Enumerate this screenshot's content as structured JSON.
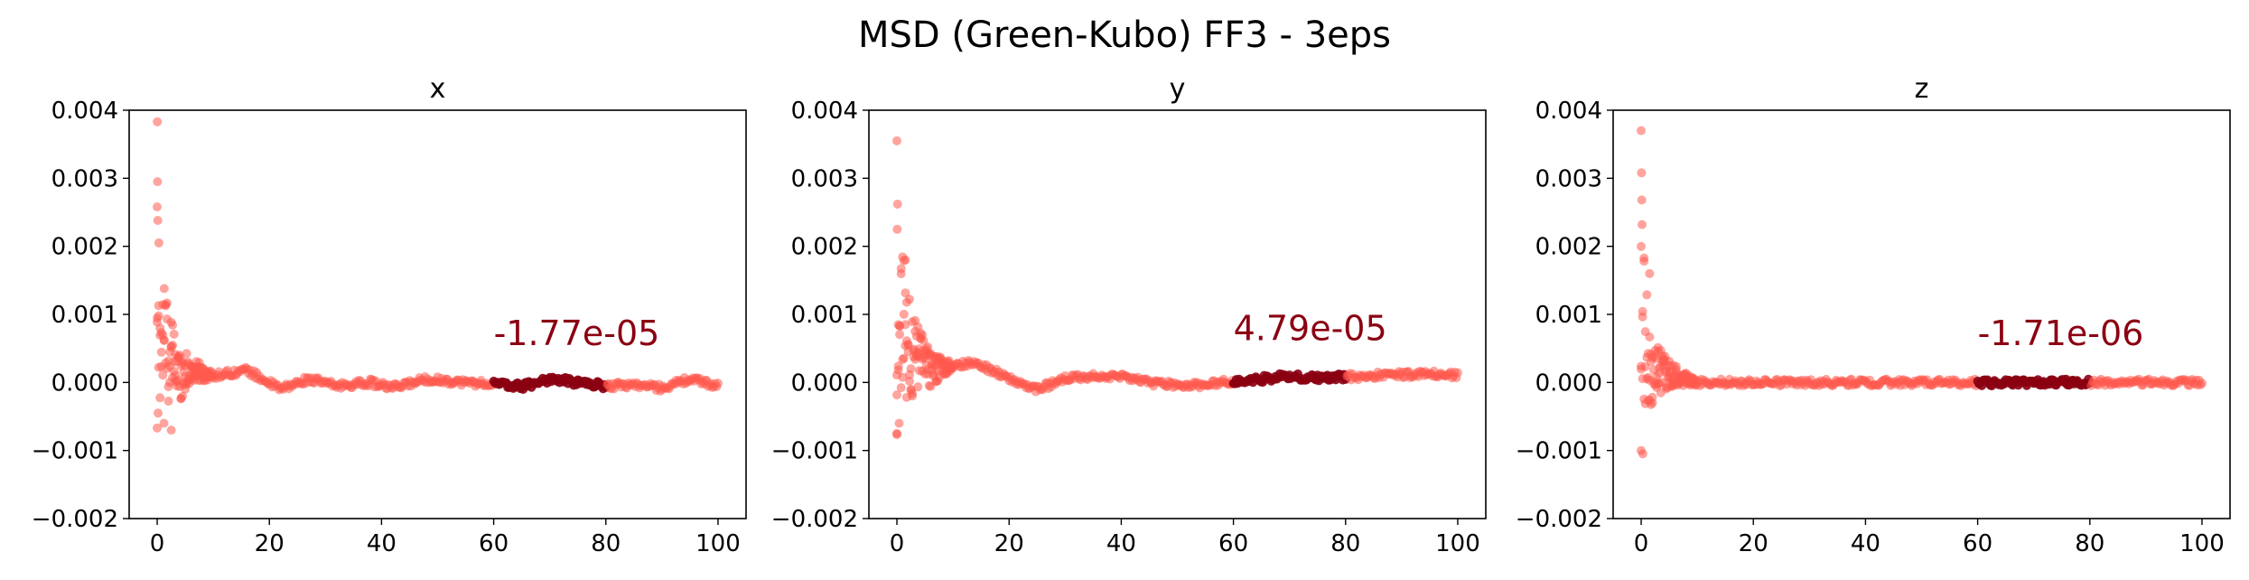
{
  "figure": {
    "title": "MSD (Green-Kubo) FF3 - 3eps",
    "point_color": "#ff5a4f",
    "highlight_color": "#8b0012"
  },
  "chart_data": [
    {
      "type": "scatter",
      "title": "x",
      "xlim": [
        -5,
        105
      ],
      "ylim": [
        -0.002,
        0.004
      ],
      "xticks": [
        0,
        20,
        40,
        60,
        80,
        100
      ],
      "yticks": [
        -0.002,
        -0.001,
        0.0,
        0.001,
        0.002,
        0.003,
        0.004
      ],
      "ytick_labels": [
        "−0.002",
        "−0.001",
        "0.000",
        "0.001",
        "0.002",
        "0.003",
        "0.004"
      ],
      "highlight_range": [
        60,
        80
      ],
      "annotation": "-1.77e-05",
      "annotation_pos": [
        60,
        0.00055
      ],
      "outliers": [
        [
          0.02,
          0.00383
        ],
        [
          0.05,
          0.00295
        ],
        [
          0.0,
          0.00258
        ],
        [
          0.1,
          0.00238
        ],
        [
          0.15,
          -0.00045
        ],
        [
          0.3,
          0.00205
        ],
        [
          1.2,
          -0.0006
        ],
        [
          2.5,
          -0.0007
        ]
      ],
      "profile": [
        [
          0,
          0.0
        ],
        [
          0.5,
          0.0008
        ],
        [
          2,
          0.00045
        ],
        [
          4,
          0.00012
        ],
        [
          6,
          0.00018
        ],
        [
          10,
          0.0001
        ],
        [
          16,
          0.00018
        ],
        [
          22,
          -0.0001
        ],
        [
          27,
          5e-05
        ],
        [
          32,
          -5e-05
        ],
        [
          38,
          0.0
        ],
        [
          42,
          -8e-05
        ],
        [
          48,
          5e-05
        ],
        [
          55,
          0.0
        ],
        [
          60,
          -2e-05
        ],
        [
          65,
          -6e-05
        ],
        [
          70,
          5e-05
        ],
        [
          75,
          0.0
        ],
        [
          80,
          -5e-05
        ],
        [
          85,
          -3e-05
        ],
        [
          90,
          -8e-05
        ],
        [
          95,
          5e-05
        ],
        [
          100,
          -5e-05
        ]
      ],
      "initial_spread": [
        [
          0,
          0.0013
        ],
        [
          3,
          0.0005
        ],
        [
          6,
          0.0002
        ],
        [
          10,
          5e-05
        ]
      ]
    },
    {
      "type": "scatter",
      "title": "y",
      "xlim": [
        -5,
        105
      ],
      "ylim": [
        -0.002,
        0.004
      ],
      "xticks": [
        0,
        20,
        40,
        60,
        80,
        100
      ],
      "yticks": [
        -0.002,
        -0.001,
        0.0,
        0.001,
        0.002,
        0.003,
        0.004
      ],
      "ytick_labels": [
        "−0.002",
        "−0.001",
        "0.000",
        "0.001",
        "0.002",
        "0.003",
        "0.004"
      ],
      "highlight_range": [
        60,
        80
      ],
      "annotation": "4.79e-05",
      "annotation_pos": [
        60,
        0.00062
      ],
      "outliers": [
        [
          0.0,
          0.00355
        ],
        [
          0.1,
          0.00262
        ],
        [
          0.05,
          0.00225
        ],
        [
          0.0,
          -0.00075
        ],
        [
          0.4,
          -0.0006
        ],
        [
          1.5,
          0.0018
        ]
      ],
      "profile": [
        [
          0,
          0.0003
        ],
        [
          1,
          0.0008
        ],
        [
          3,
          0.0004
        ],
        [
          6,
          0.00018
        ],
        [
          10,
          0.00025
        ],
        [
          14,
          0.0003
        ],
        [
          20,
          5e-05
        ],
        [
          25,
          -0.0001
        ],
        [
          30,
          5e-05
        ],
        [
          35,
          0.0001
        ],
        [
          40,
          8e-05
        ],
        [
          45,
          0.0
        ],
        [
          52,
          -5e-05
        ],
        [
          58,
          0.0
        ],
        [
          62,
          2e-05
        ],
        [
          68,
          8e-05
        ],
        [
          72,
          8e-05
        ],
        [
          76,
          6e-05
        ],
        [
          80,
          8e-05
        ],
        [
          85,
          0.0001
        ],
        [
          90,
          0.00012
        ],
        [
          95,
          0.00012
        ],
        [
          100,
          0.0001
        ]
      ],
      "initial_spread": [
        [
          0,
          0.0014
        ],
        [
          3,
          0.0006
        ],
        [
          6,
          0.00025
        ],
        [
          10,
          5e-05
        ]
      ]
    },
    {
      "type": "scatter",
      "title": "z",
      "xlim": [
        -5,
        105
      ],
      "ylim": [
        -0.002,
        0.004
      ],
      "xticks": [
        0,
        20,
        40,
        60,
        80,
        100
      ],
      "yticks": [
        -0.002,
        -0.001,
        0.0,
        0.001,
        0.002,
        0.003,
        0.004
      ],
      "ytick_labels": [
        "−0.002",
        "−0.001",
        "0.000",
        "0.001",
        "0.002",
        "0.003",
        "0.004"
      ],
      "highlight_range": [
        60,
        80
      ],
      "annotation": "-1.71e-06",
      "annotation_pos": [
        60,
        0.00055
      ],
      "outliers": [
        [
          0.0,
          0.0037
        ],
        [
          0.05,
          0.00308
        ],
        [
          0.1,
          0.00268
        ],
        [
          0.15,
          0.00232
        ],
        [
          0.0,
          -0.001
        ],
        [
          0.3,
          -0.00105
        ],
        [
          1.5,
          0.0016
        ]
      ],
      "profile": [
        [
          0,
          0.0005
        ],
        [
          0.5,
          0.0006
        ],
        [
          2,
          0.0001
        ],
        [
          4,
          0.00015
        ],
        [
          6,
          0.0001
        ],
        [
          10,
          0.0
        ],
        [
          20,
          0.0
        ],
        [
          30,
          0.0
        ],
        [
          40,
          0.0
        ],
        [
          50,
          0.0
        ],
        [
          60,
          0.0
        ],
        [
          70,
          0.0
        ],
        [
          80,
          0.0
        ],
        [
          90,
          0.0
        ],
        [
          100,
          0.0
        ]
      ],
      "initial_spread": [
        [
          0,
          0.0015
        ],
        [
          2,
          0.0005
        ],
        [
          5,
          0.0002
        ],
        [
          10,
          3e-05
        ]
      ]
    }
  ]
}
